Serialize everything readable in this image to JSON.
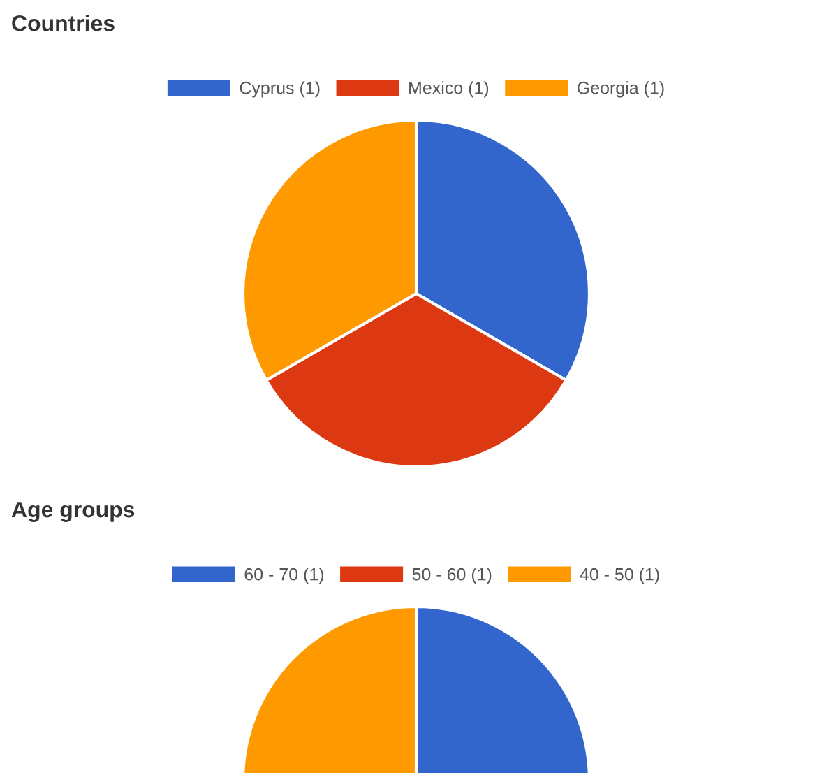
{
  "chart_data": [
    {
      "type": "pie",
      "title": "Countries",
      "categories": [
        "Cyprus (1)",
        "Mexico (1)",
        "Georgia (1)"
      ],
      "values": [
        1,
        1,
        1
      ],
      "colors": [
        "#3366cc",
        "#dc3912",
        "#ff9900"
      ],
      "legend": "top"
    },
    {
      "type": "pie",
      "title": "Age groups",
      "categories": [
        "60 - 70 (1)",
        "50 - 60 (1)",
        "40 - 50 (1)"
      ],
      "values": [
        1,
        null,
        1
      ],
      "colors": [
        "#3366cc",
        "#dc3912",
        "#ff9900"
      ],
      "legend": "top"
    }
  ]
}
